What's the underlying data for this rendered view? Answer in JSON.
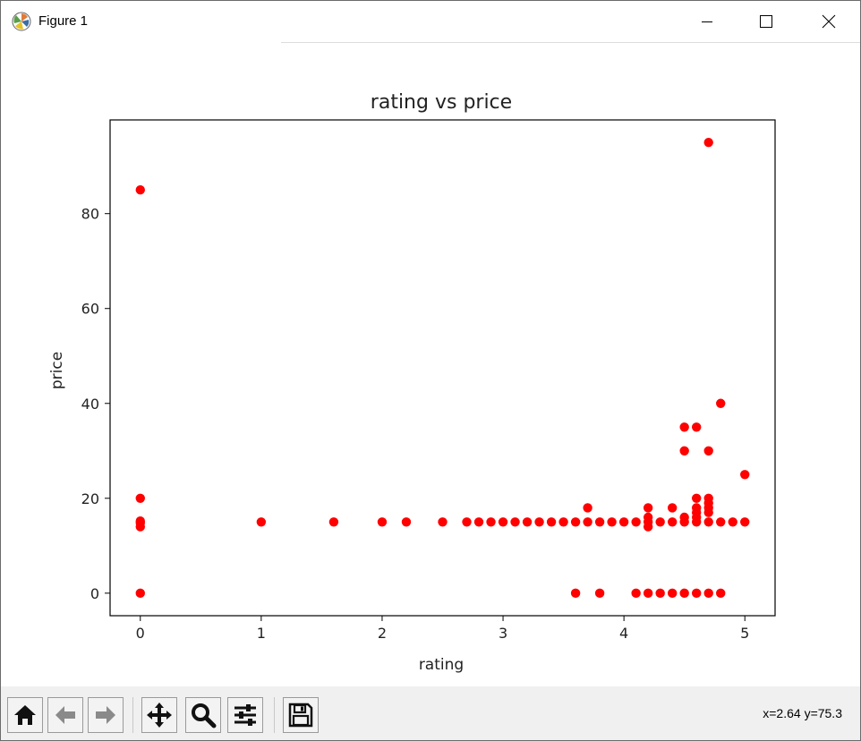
{
  "window": {
    "title": "Figure 1",
    "controls": {
      "minimize": "minimize-icon",
      "maximize": "maximize-icon",
      "close": "close-icon"
    }
  },
  "chart_data": {
    "type": "scatter",
    "title": "rating vs price",
    "xlabel": "rating",
    "ylabel": "price",
    "xlim": [
      -0.25,
      5.25
    ],
    "ylim": [
      -4.75,
      99.75
    ],
    "xticks": [
      0,
      1,
      2,
      3,
      4,
      5
    ],
    "yticks": [
      0,
      20,
      40,
      60,
      80
    ],
    "marker_color": "#ff0000",
    "grid": false,
    "points": [
      [
        0,
        85
      ],
      [
        0,
        20
      ],
      [
        0,
        15.2
      ],
      [
        0,
        14.8
      ],
      [
        0,
        14
      ],
      [
        0,
        0
      ],
      [
        1,
        15
      ],
      [
        1.6,
        15
      ],
      [
        2,
        15
      ],
      [
        2.2,
        15
      ],
      [
        2.5,
        15
      ],
      [
        2.7,
        15
      ],
      [
        2.8,
        15
      ],
      [
        2.9,
        15
      ],
      [
        3,
        15
      ],
      [
        3.1,
        15
      ],
      [
        3.2,
        15
      ],
      [
        3.3,
        15
      ],
      [
        3.4,
        15
      ],
      [
        3.5,
        15
      ],
      [
        3.6,
        15
      ],
      [
        3.7,
        15
      ],
      [
        3.7,
        18
      ],
      [
        3.8,
        15
      ],
      [
        3.9,
        15
      ],
      [
        4,
        15
      ],
      [
        4.1,
        15
      ],
      [
        4.2,
        15
      ],
      [
        4.2,
        14
      ],
      [
        4.2,
        16
      ],
      [
        4.2,
        18
      ],
      [
        4.3,
        15
      ],
      [
        4.4,
        15
      ],
      [
        4.4,
        18
      ],
      [
        4.5,
        15
      ],
      [
        4.5,
        16
      ],
      [
        4.5,
        30
      ],
      [
        4.5,
        35
      ],
      [
        4.6,
        15
      ],
      [
        4.6,
        16
      ],
      [
        4.6,
        17
      ],
      [
        4.6,
        18
      ],
      [
        4.6,
        20
      ],
      [
        4.6,
        35
      ],
      [
        4.7,
        15
      ],
      [
        4.7,
        17
      ],
      [
        4.7,
        18
      ],
      [
        4.7,
        19
      ],
      [
        4.7,
        20
      ],
      [
        4.7,
        30
      ],
      [
        4.7,
        95
      ],
      [
        4.8,
        15
      ],
      [
        4.8,
        40
      ],
      [
        4.9,
        15
      ],
      [
        5,
        15
      ],
      [
        5,
        25
      ],
      [
        3.6,
        0
      ],
      [
        3.8,
        0
      ],
      [
        4.1,
        0
      ],
      [
        4.2,
        0
      ],
      [
        4.3,
        0
      ],
      [
        4.4,
        0
      ],
      [
        4.5,
        0
      ],
      [
        4.6,
        0
      ],
      [
        4.7,
        0
      ],
      [
        4.8,
        0
      ]
    ]
  },
  "toolbar": {
    "buttons": [
      {
        "name": "home-button",
        "icon": "home-icon"
      },
      {
        "name": "back-button",
        "icon": "arrow-left-icon"
      },
      {
        "name": "forward-button",
        "icon": "arrow-right-icon"
      },
      {
        "name": "pan-button",
        "icon": "move-icon"
      },
      {
        "name": "zoom-button",
        "icon": "magnifier-icon"
      },
      {
        "name": "configure-subplots-button",
        "icon": "sliders-icon"
      },
      {
        "name": "save-button",
        "icon": "floppy-disk-icon"
      }
    ],
    "coordinates": "x=2.64 y=75.3"
  }
}
